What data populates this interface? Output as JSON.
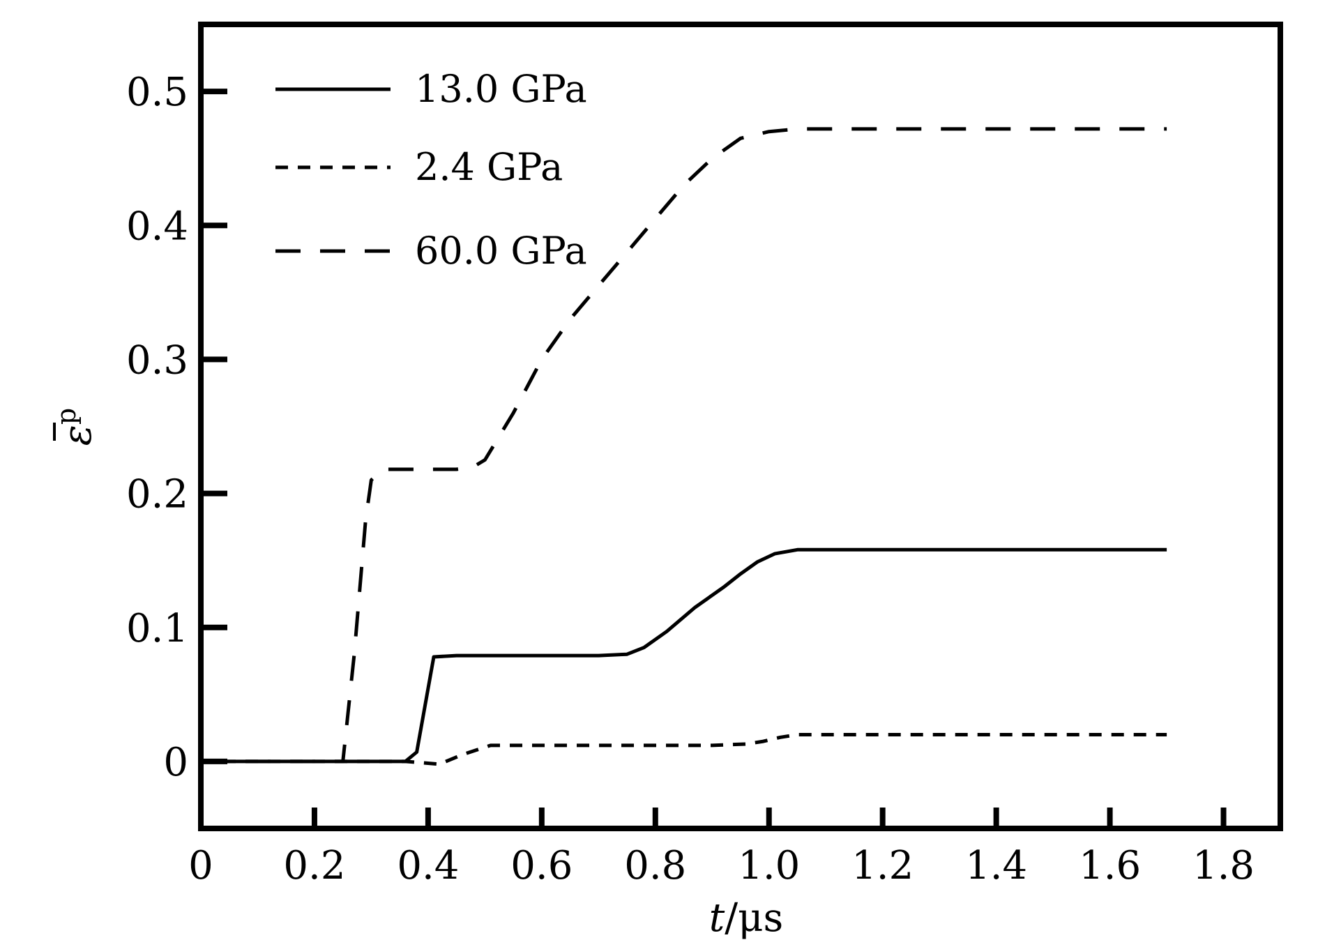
{
  "chart_data": {
    "type": "line",
    "xlabel": {
      "italic": "t",
      "rest": "/μs"
    },
    "ylabel": {
      "base": "ε",
      "sup": "p"
    },
    "xlim": [
      0,
      1.9
    ],
    "ylim": [
      -0.05,
      0.55
    ],
    "x_ticks": [
      "0",
      "0.2",
      "0.4",
      "0.6",
      "0.8",
      "1.0",
      "1.2",
      "1.4",
      "1.6",
      "1.8"
    ],
    "y_ticks": [
      "0",
      "0.1",
      "0.2",
      "0.3",
      "0.4",
      "0.5"
    ],
    "grid": false,
    "legend_position": "top-left",
    "series": [
      {
        "name": "13.0 GPa",
        "style": "solid",
        "x": [
          0,
          0.36,
          0.38,
          0.41,
          0.45,
          0.55,
          0.65,
          0.7,
          0.75,
          0.78,
          0.82,
          0.87,
          0.92,
          0.95,
          0.98,
          1.01,
          1.05,
          1.1,
          1.3,
          1.5,
          1.7
        ],
        "y": [
          0,
          0,
          0.007,
          0.078,
          0.079,
          0.079,
          0.079,
          0.079,
          0.08,
          0.085,
          0.097,
          0.115,
          0.13,
          0.14,
          0.149,
          0.155,
          0.158,
          0.158,
          0.158,
          0.158,
          0.158
        ]
      },
      {
        "name": "2.4 GPa",
        "style": "short-dash",
        "x": [
          0,
          0.36,
          0.42,
          0.46,
          0.51,
          0.6,
          0.7,
          0.8,
          0.9,
          0.96,
          0.99,
          1.02,
          1.05,
          1.1,
          1.3,
          1.5,
          1.7
        ],
        "y": [
          0,
          0,
          -0.002,
          0.005,
          0.012,
          0.012,
          0.012,
          0.012,
          0.012,
          0.013,
          0.015,
          0.018,
          0.02,
          0.02,
          0.02,
          0.02,
          0.02
        ]
      },
      {
        "name": "60.0 GPa",
        "style": "long-dash",
        "x": [
          0,
          0.25,
          0.27,
          0.29,
          0.3,
          0.32,
          0.45,
          0.48,
          0.5,
          0.55,
          0.6,
          0.65,
          0.7,
          0.75,
          0.8,
          0.85,
          0.9,
          0.95,
          1.0,
          1.05,
          1.1,
          1.3,
          1.5,
          1.7
        ],
        "y": [
          0,
          0,
          0.08,
          0.18,
          0.21,
          0.218,
          0.218,
          0.22,
          0.225,
          0.26,
          0.3,
          0.33,
          0.355,
          0.38,
          0.405,
          0.43,
          0.45,
          0.465,
          0.47,
          0.472,
          0.472,
          0.472,
          0.472,
          0.472
        ]
      }
    ]
  }
}
